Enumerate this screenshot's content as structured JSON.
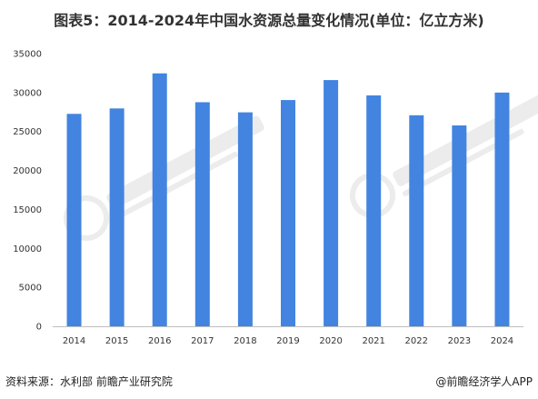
{
  "title": "图表5：2014-2024年中国水资源总量变化情况(单位：亿立方米)",
  "source": "资料来源：水利部 前瞻产业研究院",
  "credit": "@前瞻经济学人APP",
  "colors": {
    "bar": "#4284E0",
    "axis": "#BFBFBF",
    "text": "#333333"
  },
  "chart_data": {
    "type": "bar",
    "title": "图表5：2014-2024年中国水资源总量变化情况(单位：亿立方米)",
    "categories": [
      "2014",
      "2015",
      "2016",
      "2017",
      "2018",
      "2019",
      "2020",
      "2021",
      "2022",
      "2023",
      "2024"
    ],
    "values": [
      27267,
      27963,
      32466,
      28761,
      27463,
      29041,
      31605,
      29638,
      27088,
      25782,
      30000
    ],
    "ylim": [
      0,
      35000
    ],
    "yticks": [
      0,
      5000,
      10000,
      15000,
      20000,
      25000,
      30000,
      35000
    ],
    "ytick_labels": [
      "0",
      "5000",
      "10000",
      "15000",
      "20000",
      "25000",
      "30000",
      "35000"
    ],
    "grid": false,
    "legend": "none"
  }
}
